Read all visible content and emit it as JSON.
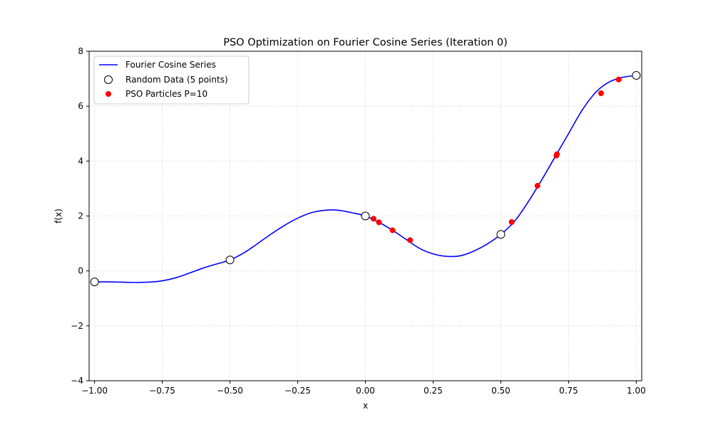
{
  "chart_data": {
    "type": "line",
    "title": "PSO Optimization on Fourier Cosine Series (Iteration 0)",
    "xlabel": "x",
    "ylabel": "f(x)",
    "xlim": [
      -1.02,
      1.02
    ],
    "ylim": [
      -4,
      8
    ],
    "xticks": [
      -1.0,
      -0.75,
      -0.5,
      -0.25,
      0.0,
      0.25,
      0.5,
      0.75,
      1.0
    ],
    "xtick_labels": [
      "−1.00",
      "−0.75",
      "−0.50",
      "−0.25",
      "0.00",
      "0.25",
      "0.50",
      "0.75",
      "1.00"
    ],
    "yticks": [
      -4,
      -2,
      0,
      2,
      4,
      6,
      8
    ],
    "ytick_labels": [
      "−4",
      "−2",
      "0",
      "2",
      "4",
      "6",
      "8"
    ],
    "grid": true,
    "legend_position": "top-left",
    "colors": {
      "curve": "#0000ff",
      "particles": "#ff0000",
      "data_edge": "#000000",
      "data_fill": "#ffffff",
      "grid": "#cccccc"
    },
    "series": [
      {
        "name": "Fourier Cosine Series",
        "kind": "line",
        "x": [
          -1.0,
          -0.95,
          -0.9,
          -0.85,
          -0.8,
          -0.75,
          -0.7,
          -0.65,
          -0.6,
          -0.55,
          -0.5,
          -0.45,
          -0.4,
          -0.35,
          -0.3,
          -0.25,
          -0.2,
          -0.15,
          -0.1,
          -0.05,
          0.0,
          0.05,
          0.1,
          0.15,
          0.2,
          0.25,
          0.3,
          0.35,
          0.4,
          0.45,
          0.5,
          0.55,
          0.6,
          0.65,
          0.7,
          0.75,
          0.8,
          0.85,
          0.9,
          0.95,
          1.0
        ],
        "y": [
          -0.4,
          -0.4,
          -0.41,
          -0.42,
          -0.41,
          -0.36,
          -0.25,
          -0.08,
          0.1,
          0.25,
          0.4,
          0.65,
          0.98,
          1.33,
          1.65,
          1.92,
          2.12,
          2.21,
          2.21,
          2.12,
          2.0,
          1.77,
          1.48,
          1.15,
          0.82,
          0.62,
          0.53,
          0.55,
          0.72,
          0.98,
          1.33,
          1.8,
          2.5,
          3.3,
          4.15,
          5.0,
          5.85,
          6.5,
          6.88,
          7.05,
          7.12
        ]
      },
      {
        "name": "Random Data (5 points)",
        "kind": "scatter",
        "x": [
          -1.0,
          -0.5,
          0.0,
          0.5,
          1.0
        ],
        "y": [
          -0.4,
          0.4,
          2.0,
          1.33,
          7.12
        ]
      },
      {
        "name": "PSO Particles P=10",
        "kind": "scatter",
        "x": [
          0.03,
          0.05,
          0.1,
          0.165,
          0.54,
          0.635,
          0.705,
          0.87,
          0.935,
          0.707
        ],
        "y": [
          1.9,
          1.77,
          1.48,
          1.12,
          1.78,
          3.1,
          4.2,
          6.47,
          6.97,
          4.25
        ]
      }
    ]
  }
}
